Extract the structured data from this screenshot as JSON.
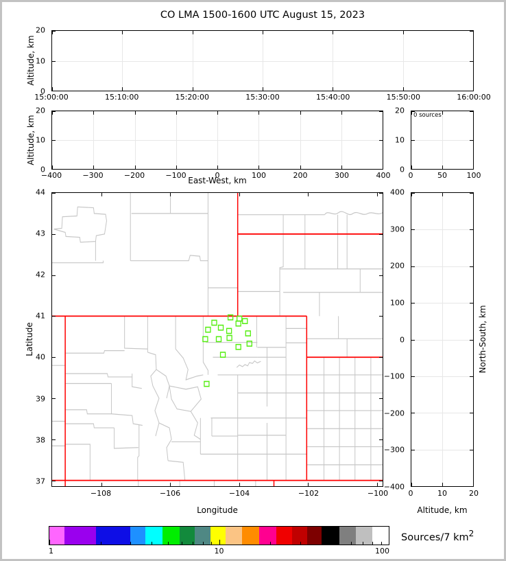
{
  "title": "CO LMA 1500-1600 UTC August 15, 2023",
  "colors": {
    "state": "#ff0000",
    "county": "#c6c6c6",
    "station": "#55ee11",
    "grid": "#e7e7e7"
  },
  "panels": {
    "time": {
      "ylabel": "Altitude, km",
      "xticks": [
        {
          "v": "15:00:00",
          "p": 0
        },
        {
          "v": "15:10:00",
          "p": 0.1667
        },
        {
          "v": "15:20:00",
          "p": 0.3333
        },
        {
          "v": "15:30:00",
          "p": 0.5
        },
        {
          "v": "15:40:00",
          "p": 0.6667
        },
        {
          "v": "15:50:00",
          "p": 0.8333
        },
        {
          "v": "16:00:00",
          "p": 1
        }
      ],
      "yticks": [
        {
          "v": "20",
          "p": 0
        },
        {
          "v": "10",
          "p": 0.5
        },
        {
          "v": "0",
          "p": 1
        }
      ]
    },
    "ew": {
      "ylabel": "Altitude, km",
      "xlabel": "East-West, km",
      "xticks": [
        {
          "v": "−400",
          "p": 0
        },
        {
          "v": "−300",
          "p": 0.125
        },
        {
          "v": "−200",
          "p": 0.25
        },
        {
          "v": "−100",
          "p": 0.375
        },
        {
          "v": "0",
          "p": 0.5
        },
        {
          "v": "100",
          "p": 0.625
        },
        {
          "v": "200",
          "p": 0.75
        },
        {
          "v": "300",
          "p": 0.875
        },
        {
          "v": "400",
          "p": 1
        }
      ],
      "yticks": [
        {
          "v": "20",
          "p": 0
        },
        {
          "v": "10",
          "p": 0.5
        },
        {
          "v": "0",
          "p": 1
        }
      ]
    },
    "hist": {
      "note": "0 sources",
      "xticks": [
        {
          "v": "0",
          "p": 0
        },
        {
          "v": "50",
          "p": 0.5
        },
        {
          "v": "100",
          "p": 1
        }
      ],
      "yticks": [
        {
          "v": "20",
          "p": 0
        },
        {
          "v": "10",
          "p": 0.5
        },
        {
          "v": "0",
          "p": 1
        }
      ]
    },
    "map": {
      "xlabel": "Longitude",
      "ylabel": "Latitude",
      "xticks": [
        {
          "v": "−108",
          "p": 0.1488
        },
        {
          "v": "−106",
          "p": 0.3574
        },
        {
          "v": "−104",
          "p": 0.5661
        },
        {
          "v": "−102",
          "p": 0.7748
        },
        {
          "v": "−100",
          "p": 0.9835
        }
      ],
      "yticks": [
        {
          "v": "44",
          "p": 0
        },
        {
          "v": "43",
          "p": 0.1401
        },
        {
          "v": "42",
          "p": 0.2802
        },
        {
          "v": "41",
          "p": 0.4203
        },
        {
          "v": "40",
          "p": 0.5604
        },
        {
          "v": "39",
          "p": 0.7005
        },
        {
          "v": "38",
          "p": 0.8406
        },
        {
          "v": "37",
          "p": 0.9807
        }
      ]
    },
    "ns": {
      "xlabel": "Altitude, km",
      "ylabel": "North-South, km",
      "xticks": [
        {
          "v": "0",
          "p": 0
        },
        {
          "v": "10",
          "p": 0.5
        },
        {
          "v": "20",
          "p": 1
        }
      ],
      "yticks": [
        {
          "v": "400",
          "p": 0
        },
        {
          "v": "300",
          "p": 0.125
        },
        {
          "v": "200",
          "p": 0.25
        },
        {
          "v": "100",
          "p": 0.375
        },
        {
          "v": "0",
          "p": 0.5
        },
        {
          "v": "−100",
          "p": 0.625
        },
        {
          "v": "−200",
          "p": 0.75
        },
        {
          "v": "−300",
          "p": 0.875
        },
        {
          "v": "−400",
          "p": 1
        }
      ]
    }
  },
  "colorbar": {
    "label": "Sources/7 km",
    "label_sup": "2",
    "scale": "log",
    "range": [
      1,
      100
    ],
    "ticks": [
      {
        "v": "1",
        "p": 0,
        "a": "l"
      },
      {
        "v": "10",
        "p": 0.5,
        "a": "c"
      },
      {
        "v": "100",
        "p": 1,
        "a": "r"
      }
    ],
    "minor": [
      2,
      3,
      4,
      5,
      6,
      7,
      8,
      9,
      20,
      30,
      40,
      50,
      60,
      70,
      80,
      90
    ],
    "segments": [
      {
        "c": "#ff66ff",
        "w": 22
      },
      {
        "c": "#9a00ee",
        "w": 46
      },
      {
        "c": "#0e0ee6",
        "w": 50
      },
      {
        "c": "#1e90ff",
        "w": 22
      },
      {
        "c": "#00ffff",
        "w": 25
      },
      {
        "c": "#00ee00",
        "w": 25
      },
      {
        "c": "#128a3c",
        "w": 22
      },
      {
        "c": "#4f8884",
        "w": 23
      },
      {
        "c": "#ffff00",
        "w": 22
      },
      {
        "c": "#fbc484",
        "w": 24
      },
      {
        "c": "#ff8c00",
        "w": 25
      },
      {
        "c": "#ff0090",
        "w": 25
      },
      {
        "c": "#f00000",
        "w": 23
      },
      {
        "c": "#c00000",
        "w": 22
      },
      {
        "c": "#7d0000",
        "w": 21
      },
      {
        "c": "#000000",
        "w": 26
      },
      {
        "c": "#7f7f7f",
        "w": 24
      },
      {
        "c": "#bfbfbf",
        "w": 24
      },
      {
        "c": "#ffffff",
        "w": 24
      }
    ]
  },
  "chart_data": [
    {
      "type": "scatter",
      "panel": "time-altitude",
      "title": "CO LMA 1500-1600 UTC August 15, 2023",
      "ylabel": "Altitude, km",
      "xlim": [
        "15:00:00",
        "16:00:00"
      ],
      "ylim": [
        0,
        20
      ],
      "points": [],
      "grid": true
    },
    {
      "type": "scatter",
      "panel": "eastwest-altitude",
      "xlabel": "East-West, km",
      "ylabel": "Altitude, km",
      "xlim": [
        -400,
        400
      ],
      "ylim": [
        0,
        20
      ],
      "points": [],
      "grid": true
    },
    {
      "type": "histogram",
      "panel": "altitude-source-count",
      "annotation": "0 sources",
      "xlim": [
        0,
        100
      ],
      "ylim": [
        0,
        20
      ],
      "values": [],
      "grid": true
    },
    {
      "type": "scatter",
      "panel": "map",
      "xlabel": "Longitude",
      "ylabel": "Latitude",
      "xlim": [
        -109.43,
        -99.84
      ],
      "ylim": [
        36.86,
        44.0
      ],
      "state_borders_red": [
        "Colorado outline 37N-41N / -109.05W to -102.05W",
        "Wyoming-Nebraska -104.05W",
        "Nebraska-South Dakota 43N",
        "Nebraska-Kansas 40N",
        "New Mexico-Oklahoma -103W"
      ],
      "county_lines": "gray",
      "stations": [
        [
          -104.26,
          40.97
        ],
        [
          -104.0,
          40.94
        ],
        [
          -103.84,
          40.88
        ],
        [
          -104.03,
          40.82
        ],
        [
          -104.73,
          40.84
        ],
        [
          -104.54,
          40.72
        ],
        [
          -104.91,
          40.67
        ],
        [
          -104.3,
          40.64
        ],
        [
          -103.75,
          40.58
        ],
        [
          -104.99,
          40.44
        ],
        [
          -104.6,
          40.44
        ],
        [
          -104.29,
          40.47
        ],
        [
          -103.71,
          40.33
        ],
        [
          -104.03,
          40.25
        ],
        [
          -104.48,
          40.06
        ],
        [
          -104.95,
          39.35
        ]
      ]
    },
    {
      "type": "scatter",
      "panel": "northsouth-altitude",
      "xlabel": "Altitude, km",
      "ylabel": "North-South, km",
      "xlim": [
        0,
        20
      ],
      "ylim": [
        -400,
        400
      ],
      "points": [],
      "grid": true
    },
    {
      "type": "colorbar",
      "label": "Sources/7 km²",
      "scale": "log",
      "range": [
        1,
        100
      ],
      "n_colors": 19
    }
  ]
}
